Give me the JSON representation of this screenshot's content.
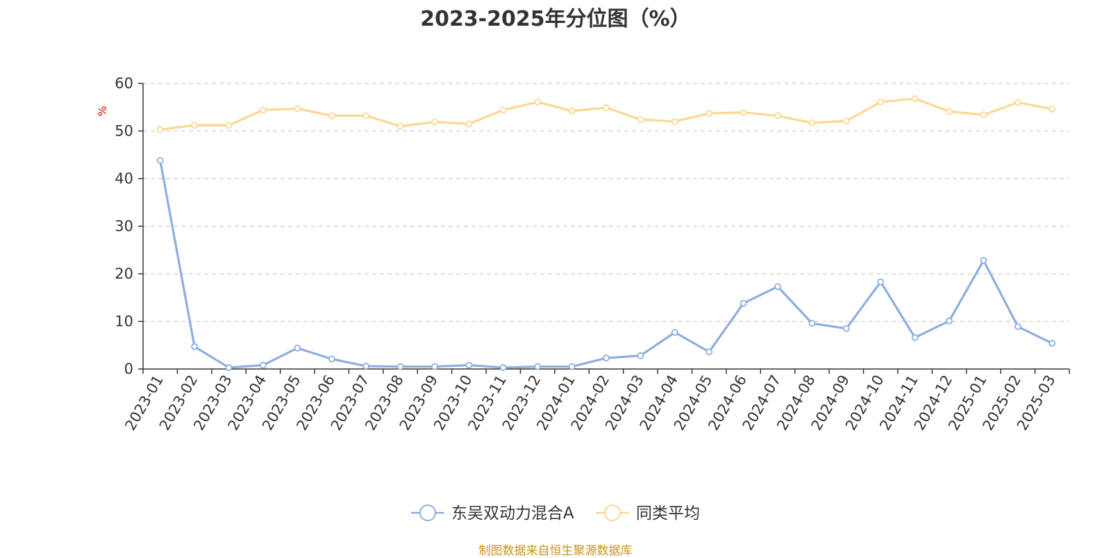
{
  "chart_data": {
    "type": "line",
    "title": "2023-2025年分位图（%）",
    "ylabel": "%",
    "ylim": [
      0,
      60
    ],
    "yticks": [
      0,
      10,
      20,
      30,
      40,
      50,
      60
    ],
    "grid": true,
    "legend_position": "bottom",
    "categories": [
      "2023-01",
      "2023-02",
      "2023-03",
      "2023-04",
      "2023-05",
      "2023-06",
      "2023-07",
      "2023-08",
      "2023-09",
      "2023-10",
      "2023-11",
      "2023-12",
      "2024-01",
      "2024-02",
      "2024-03",
      "2024-04",
      "2024-05",
      "2024-06",
      "2024-07",
      "2024-08",
      "2024-09",
      "2024-10",
      "2024-11",
      "2024-12",
      "2025-01",
      "2025-02",
      "2025-03"
    ],
    "series": [
      {
        "name": "东吴双动力混合A",
        "color": "#8eaede",
        "values": [
          43.8,
          4.7,
          0.3,
          0.8,
          4.4,
          2.1,
          0.6,
          0.5,
          0.5,
          0.8,
          0.3,
          0.5,
          0.5,
          2.3,
          2.8,
          7.7,
          3.6,
          13.8,
          17.3,
          9.6,
          8.5,
          18.3,
          6.6,
          10.1,
          22.8,
          8.9,
          5.4
        ]
      },
      {
        "name": "同类平均",
        "color": "#fad892",
        "values": [
          50.3,
          51.2,
          51.2,
          54.4,
          54.7,
          53.2,
          53.2,
          51.0,
          51.9,
          51.5,
          54.4,
          56.1,
          54.2,
          54.9,
          52.4,
          52.0,
          53.7,
          53.9,
          53.2,
          51.7,
          52.1,
          56.1,
          56.8,
          54.1,
          53.4,
          56.0,
          54.6
        ]
      }
    ]
  },
  "footer": {
    "source": "制图数据来自恒生聚源数据库"
  }
}
